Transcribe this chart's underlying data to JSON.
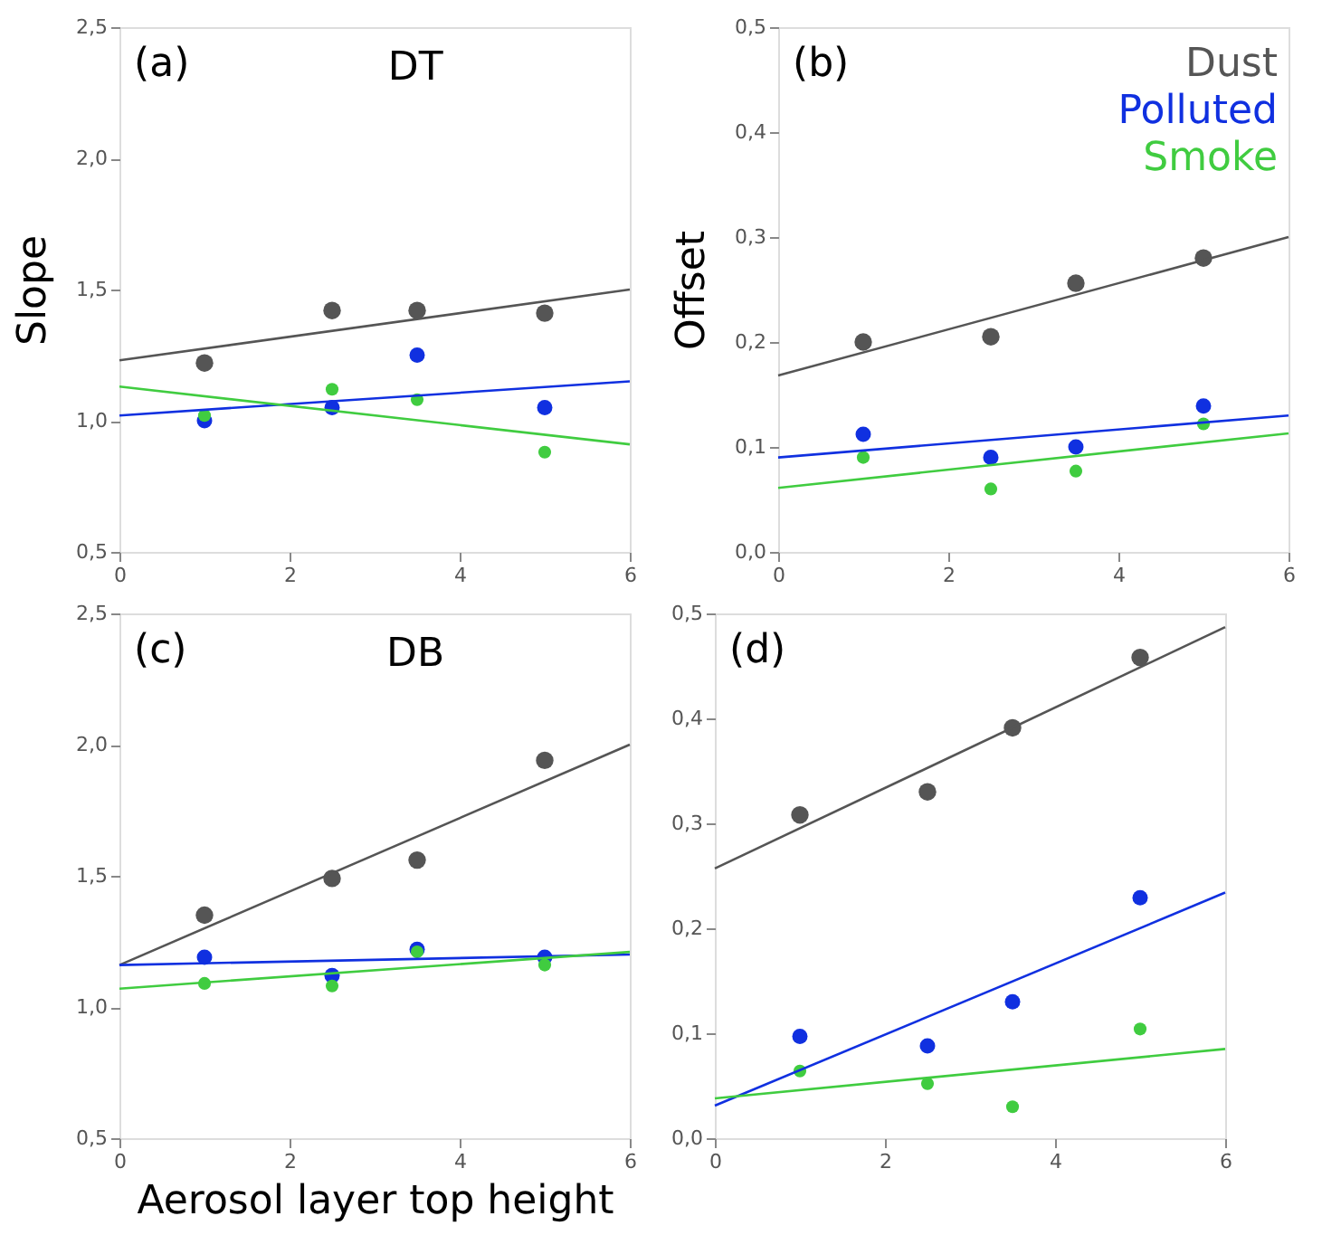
{
  "chart_data": [
    {
      "type": "scatter",
      "ylabel": "Slope",
      "annotations": [
        "(a)",
        "DT"
      ],
      "xlim": [
        0,
        6
      ],
      "xticks": [
        0,
        2,
        4,
        6
      ],
      "ylim": [
        0.5,
        2.5
      ],
      "yticks": [
        {
          "value": 0.5,
          "label": "0,5"
        },
        {
          "value": 1.0,
          "label": "1,0"
        },
        {
          "value": 1.5,
          "label": "1,5"
        },
        {
          "value": 2.0,
          "label": "2,0"
        },
        {
          "value": 2.5,
          "label": "2,5"
        }
      ],
      "grid": false,
      "series": [
        {
          "color": "#555555",
          "x": [
            1,
            2.5,
            3.5,
            5
          ],
          "values": [
            1.22,
            1.42,
            1.42,
            1.41
          ]
        },
        {
          "color": "#1030e0",
          "x": [
            1,
            2.5,
            3.5,
            5
          ],
          "values": [
            1.0,
            1.05,
            1.25,
            1.05
          ]
        },
        {
          "color": "#40cc40",
          "x": [
            1,
            2.5,
            3.5,
            5
          ],
          "values": [
            1.02,
            1.12,
            1.08,
            0.88
          ]
        },
        {
          "type": "line",
          "color": "#555555",
          "x": [
            0,
            6
          ],
          "values": [
            1.23,
            1.5
          ]
        },
        {
          "type": "line",
          "color": "#1030e0",
          "x": [
            0,
            6
          ],
          "values": [
            1.02,
            1.15
          ]
        },
        {
          "type": "line",
          "color": "#40cc40",
          "x": [
            0,
            6
          ],
          "values": [
            1.13,
            0.91
          ]
        }
      ]
    },
    {
      "type": "scatter",
      "ylabel": "Offset",
      "annotations": [
        "(b)"
      ],
      "legend": "top right",
      "xlim": [
        0,
        6
      ],
      "xticks": [
        0,
        2,
        4,
        6
      ],
      "ylim": [
        0,
        0.5
      ],
      "yticks": [
        {
          "value": 0,
          "label": "0,0"
        },
        {
          "value": 0.1,
          "label": "0,1"
        },
        {
          "value": 0.2,
          "label": "0,2"
        },
        {
          "value": 0.3,
          "label": "0,3"
        },
        {
          "value": 0.4,
          "label": "0,4"
        },
        {
          "value": 0.5,
          "label": "0,5"
        }
      ],
      "grid": false,
      "series": [
        {
          "name": "Dust",
          "color": "#555555",
          "x": [
            1,
            2.5,
            3.5,
            5
          ],
          "values": [
            0.2,
            0.205,
            0.256,
            0.28
          ]
        },
        {
          "name": "Polluted",
          "color": "#1030e0",
          "x": [
            1,
            2.5,
            3.5,
            5
          ],
          "values": [
            0.112,
            0.09,
            0.1,
            0.139
          ]
        },
        {
          "name": "Smoke",
          "color": "#40cc40",
          "x": [
            1,
            2.5,
            3.5,
            5
          ],
          "values": [
            0.09,
            0.06,
            0.077,
            0.122
          ]
        },
        {
          "type": "line",
          "color": "#555555",
          "x": [
            0,
            6
          ],
          "values": [
            0.168,
            0.3
          ]
        },
        {
          "type": "line",
          "color": "#1030e0",
          "x": [
            0,
            6
          ],
          "values": [
            0.09,
            0.13
          ]
        },
        {
          "type": "line",
          "color": "#40cc40",
          "x": [
            0,
            6
          ],
          "values": [
            0.061,
            0.113
          ]
        }
      ]
    },
    {
      "type": "scatter",
      "xlabel": "Aerosol layer top height",
      "annotations": [
        "(c)",
        "DB"
      ],
      "xlim": [
        0,
        6
      ],
      "xticks": [
        0,
        2,
        4,
        6
      ],
      "ylim": [
        0.5,
        2.5
      ],
      "yticks": [
        {
          "value": 0.5,
          "label": "0,5"
        },
        {
          "value": 1.0,
          "label": "1,0"
        },
        {
          "value": 1.5,
          "label": "1,5"
        },
        {
          "value": 2.0,
          "label": "2,0"
        },
        {
          "value": 2.5,
          "label": "2,5"
        }
      ],
      "grid": false,
      "series": [
        {
          "color": "#555555",
          "x": [
            1,
            2.5,
            3.5,
            5
          ],
          "values": [
            1.35,
            1.49,
            1.56,
            1.94
          ]
        },
        {
          "color": "#1030e0",
          "x": [
            1,
            2.5,
            3.5,
            5
          ],
          "values": [
            1.19,
            1.12,
            1.22,
            1.19
          ]
        },
        {
          "color": "#40cc40",
          "x": [
            1,
            2.5,
            3.5,
            5
          ],
          "values": [
            1.09,
            1.08,
            1.21,
            1.16
          ]
        },
        {
          "type": "line",
          "color": "#555555",
          "x": [
            0,
            6
          ],
          "values": [
            1.16,
            2.0
          ]
        },
        {
          "type": "line",
          "color": "#1030e0",
          "x": [
            0,
            6
          ],
          "values": [
            1.16,
            1.2
          ]
        },
        {
          "type": "line",
          "color": "#40cc40",
          "x": [
            0,
            6
          ],
          "values": [
            1.07,
            1.21
          ]
        }
      ]
    },
    {
      "type": "scatter",
      "annotations": [
        "(d)"
      ],
      "xlim": [
        0,
        6
      ],
      "xticks": [
        0,
        2,
        4,
        6
      ],
      "ylim": [
        0,
        0.5
      ],
      "yticks": [
        {
          "value": 0,
          "label": "0,0"
        },
        {
          "value": 0.1,
          "label": "0,1"
        },
        {
          "value": 0.2,
          "label": "0,2"
        },
        {
          "value": 0.3,
          "label": "0,3"
        },
        {
          "value": 0.4,
          "label": "0,4"
        },
        {
          "value": 0.5,
          "label": "0,5"
        }
      ],
      "grid": false,
      "series": [
        {
          "color": "#555555",
          "x": [
            1,
            2.5,
            3.5,
            5
          ],
          "values": [
            0.308,
            0.33,
            0.391,
            0.458
          ]
        },
        {
          "color": "#1030e0",
          "x": [
            1,
            2.5,
            3.5,
            5
          ],
          "values": [
            0.097,
            0.088,
            0.13,
            0.229
          ]
        },
        {
          "color": "#40cc40",
          "x": [
            1,
            2.5,
            3.5,
            5
          ],
          "values": [
            0.064,
            0.052,
            0.03,
            0.104
          ]
        },
        {
          "type": "line",
          "color": "#555555",
          "x": [
            0,
            6
          ],
          "values": [
            0.257,
            0.487
          ]
        },
        {
          "type": "line",
          "color": "#1030e0",
          "x": [
            0,
            6
          ],
          "values": [
            0.031,
            0.234
          ]
        },
        {
          "type": "line",
          "color": "#40cc40",
          "x": [
            0,
            6
          ],
          "values": [
            0.038,
            0.085
          ]
        }
      ]
    }
  ]
}
